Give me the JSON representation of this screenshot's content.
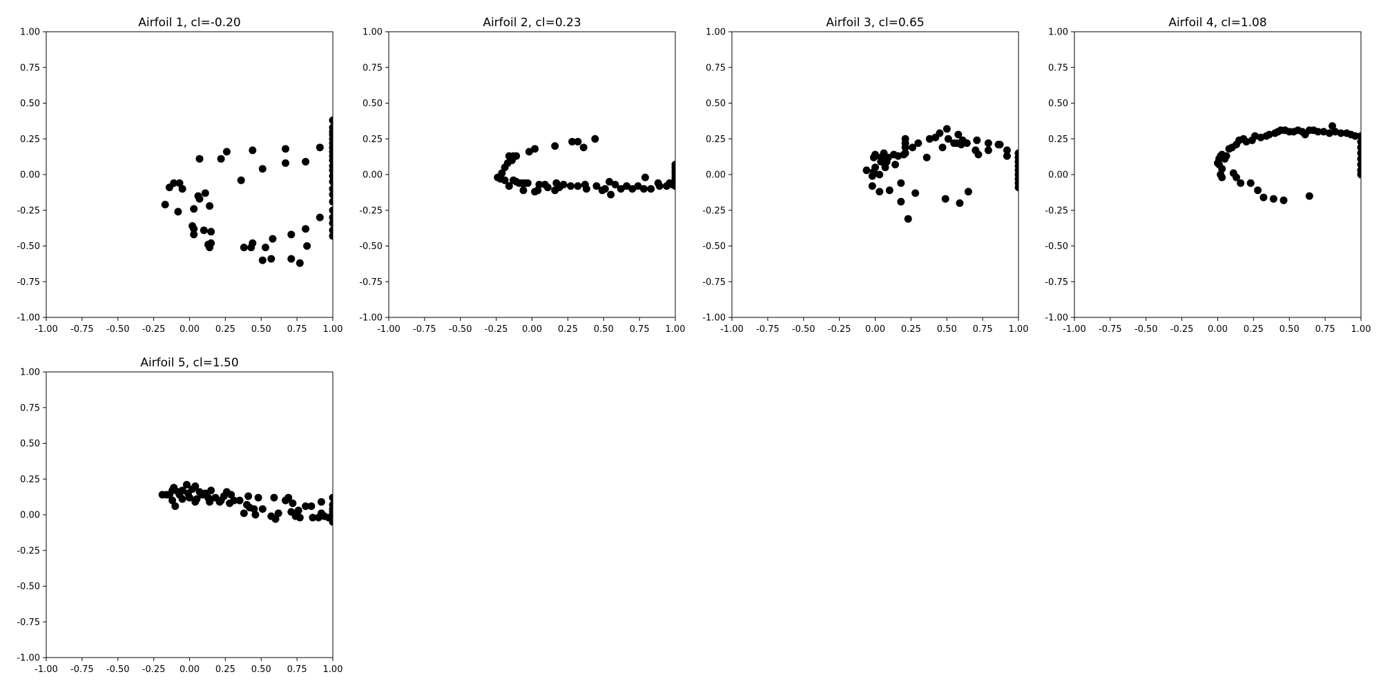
{
  "figure": {
    "subplot_grid": {
      "rows": 2,
      "cols": 4
    },
    "marker_color": "#000000",
    "background": "#ffffff"
  },
  "chart_data": [
    {
      "type": "scatter",
      "title": "Airfoil 1, cl=-0.20",
      "xlim": [
        -1,
        1
      ],
      "ylim": [
        -1,
        1
      ],
      "xticks": [
        "-1.00",
        "-0.75",
        "-0.50",
        "-0.25",
        "0.00",
        "0.25",
        "0.50",
        "0.75",
        "1.00"
      ],
      "yticks": [
        "-1.00",
        "-0.75",
        "-0.50",
        "-0.25",
        "0.00",
        "0.25",
        "0.50",
        "0.75",
        "1.00"
      ],
      "grid": false,
      "points": [
        [
          1.0,
          0.38
        ],
        [
          1.0,
          0.33
        ],
        [
          1.0,
          0.3
        ],
        [
          1.0,
          0.28
        ],
        [
          1.0,
          0.25
        ],
        [
          1.0,
          0.22
        ],
        [
          1.0,
          0.19
        ],
        [
          1.0,
          0.16
        ],
        [
          1.0,
          0.13
        ],
        [
          1.0,
          0.1
        ],
        [
          1.0,
          0.06
        ],
        [
          1.0,
          0.03
        ],
        [
          1.0,
          -0.01
        ],
        [
          1.0,
          -0.05
        ],
        [
          1.0,
          -0.1
        ],
        [
          1.0,
          -0.14
        ],
        [
          1.0,
          -0.19
        ],
        [
          1.0,
          -0.25
        ],
        [
          1.0,
          -0.3
        ],
        [
          1.0,
          -0.34
        ],
        [
          1.0,
          -0.39
        ],
        [
          1.0,
          -0.43
        ],
        [
          0.91,
          0.19
        ],
        [
          0.81,
          0.09
        ],
        [
          0.67,
          0.18
        ],
        [
          0.67,
          0.08
        ],
        [
          0.51,
          0.04
        ],
        [
          0.44,
          0.17
        ],
        [
          0.26,
          0.16
        ],
        [
          0.22,
          0.11
        ],
        [
          0.07,
          0.11
        ],
        [
          0.36,
          -0.04
        ],
        [
          -0.11,
          -0.06
        ],
        [
          -0.14,
          -0.09
        ],
        [
          -0.17,
          -0.21
        ],
        [
          -0.07,
          -0.06
        ],
        [
          -0.05,
          -0.1
        ],
        [
          -0.08,
          -0.26
        ],
        [
          0.03,
          -0.24
        ],
        [
          0.06,
          -0.15
        ],
        [
          0.07,
          -0.17
        ],
        [
          0.11,
          -0.13
        ],
        [
          0.14,
          -0.22
        ],
        [
          0.02,
          -0.36
        ],
        [
          0.03,
          -0.38
        ],
        [
          0.03,
          -0.42
        ],
        [
          0.1,
          -0.39
        ],
        [
          0.15,
          -0.4
        ],
        [
          0.15,
          -0.48
        ],
        [
          0.13,
          -0.49
        ],
        [
          0.14,
          -0.51
        ],
        [
          0.38,
          -0.51
        ],
        [
          0.43,
          -0.51
        ],
        [
          0.44,
          -0.48
        ],
        [
          0.51,
          -0.6
        ],
        [
          0.53,
          -0.51
        ],
        [
          0.57,
          -0.59
        ],
        [
          0.58,
          -0.45
        ],
        [
          0.71,
          -0.42
        ],
        [
          0.71,
          -0.59
        ],
        [
          0.77,
          -0.62
        ],
        [
          0.81,
          -0.38
        ],
        [
          0.82,
          -0.5
        ],
        [
          0.91,
          -0.3
        ]
      ]
    },
    {
      "type": "scatter",
      "title": "Airfoil 2, cl=0.23",
      "xlim": [
        -1,
        1
      ],
      "ylim": [
        -1,
        1
      ],
      "xticks": [
        "-1.00",
        "-0.75",
        "-0.50",
        "-0.25",
        "0.00",
        "0.25",
        "0.50",
        "0.75",
        "1.00"
      ],
      "yticks": [
        "-1.00",
        "-0.75",
        "-0.50",
        "-0.25",
        "0.00",
        "0.25",
        "0.50",
        "0.75",
        "1.00"
      ],
      "grid": false,
      "points": [
        [
          -0.24,
          -0.02
        ],
        [
          -0.22,
          -0.03
        ],
        [
          -0.21,
          0.01
        ],
        [
          -0.19,
          0.05
        ],
        [
          -0.19,
          -0.04
        ],
        [
          -0.17,
          0.08
        ],
        [
          -0.16,
          -0.08
        ],
        [
          -0.16,
          0.13
        ],
        [
          -0.14,
          0.1
        ],
        [
          -0.13,
          0.13
        ],
        [
          -0.13,
          -0.04
        ],
        [
          -0.11,
          -0.05
        ],
        [
          -0.11,
          0.13
        ],
        [
          -0.09,
          -0.06
        ],
        [
          -0.07,
          -0.06
        ],
        [
          -0.06,
          -0.11
        ],
        [
          -0.05,
          -0.06
        ],
        [
          -0.03,
          -0.06
        ],
        [
          -0.02,
          0.16
        ],
        [
          0.02,
          0.18
        ],
        [
          0.02,
          -0.12
        ],
        [
          0.04,
          -0.11
        ],
        [
          0.05,
          -0.07
        ],
        [
          0.09,
          -0.07
        ],
        [
          0.11,
          -0.09
        ],
        [
          0.16,
          0.2
        ],
        [
          0.16,
          -0.11
        ],
        [
          0.17,
          -0.06
        ],
        [
          0.19,
          -0.09
        ],
        [
          0.22,
          -0.07
        ],
        [
          0.27,
          -0.08
        ],
        [
          0.28,
          0.23
        ],
        [
          0.32,
          0.23
        ],
        [
          0.32,
          -0.08
        ],
        [
          0.36,
          0.19
        ],
        [
          0.37,
          -0.07
        ],
        [
          0.38,
          -0.1
        ],
        [
          0.44,
          0.25
        ],
        [
          0.45,
          -0.08
        ],
        [
          0.49,
          -0.11
        ],
        [
          0.51,
          -0.1
        ],
        [
          0.54,
          -0.05
        ],
        [
          0.55,
          -0.14
        ],
        [
          0.58,
          -0.07
        ],
        [
          0.62,
          -0.1
        ],
        [
          0.66,
          -0.08
        ],
        [
          0.7,
          -0.1
        ],
        [
          0.74,
          -0.08
        ],
        [
          0.78,
          -0.1
        ],
        [
          0.79,
          -0.02
        ],
        [
          0.83,
          -0.1
        ],
        [
          0.88,
          -0.06
        ],
        [
          0.89,
          -0.08
        ],
        [
          0.94,
          -0.08
        ],
        [
          0.96,
          -0.06
        ],
        [
          0.98,
          -0.07
        ],
        [
          1.0,
          0.07
        ],
        [
          1.0,
          0.05
        ],
        [
          1.0,
          0.03
        ],
        [
          1.0,
          0.01
        ],
        [
          1.0,
          -0.01
        ],
        [
          1.0,
          -0.03
        ],
        [
          1.0,
          -0.05
        ],
        [
          1.0,
          -0.08
        ]
      ]
    },
    {
      "type": "scatter",
      "title": "Airfoil 3, cl=0.65",
      "xlim": [
        -1,
        1
      ],
      "ylim": [
        -1,
        1
      ],
      "xticks": [
        "-1.00",
        "-0.75",
        "-0.50",
        "-0.25",
        "0.00",
        "0.25",
        "0.50",
        "0.75",
        "1.00"
      ],
      "yticks": [
        "-1.00",
        "-0.75",
        "-0.50",
        "-0.25",
        "0.00",
        "0.25",
        "0.50",
        "0.75",
        "1.00"
      ],
      "grid": false,
      "points": [
        [
          -0.06,
          0.03
        ],
        [
          -0.02,
          -0.08
        ],
        [
          -0.01,
          0.12
        ],
        [
          0.0,
          0.14
        ],
        [
          0.0,
          0.05
        ],
        [
          -0.01,
          0.02
        ],
        [
          -0.02,
          -0.01
        ],
        [
          0.03,
          -0.12
        ],
        [
          0.03,
          0.0
        ],
        [
          0.04,
          0.09
        ],
        [
          0.04,
          0.12
        ],
        [
          0.06,
          0.15
        ],
        [
          0.06,
          0.11
        ],
        [
          0.07,
          0.05
        ],
        [
          0.08,
          0.09
        ],
        [
          0.09,
          0.12
        ],
        [
          0.1,
          -0.11
        ],
        [
          0.13,
          0.14
        ],
        [
          0.14,
          0.07
        ],
        [
          0.16,
          0.13
        ],
        [
          0.18,
          -0.06
        ],
        [
          0.18,
          -0.19
        ],
        [
          0.2,
          0.14
        ],
        [
          0.21,
          0.25
        ],
        [
          0.21,
          0.22
        ],
        [
          0.21,
          0.19
        ],
        [
          0.21,
          0.15
        ],
        [
          0.23,
          -0.31
        ],
        [
          0.26,
          0.19
        ],
        [
          0.28,
          -0.13
        ],
        [
          0.3,
          0.22
        ],
        [
          0.36,
          0.12
        ],
        [
          0.38,
          0.25
        ],
        [
          0.42,
          0.26
        ],
        [
          0.45,
          0.29
        ],
        [
          0.47,
          0.19
        ],
        [
          0.49,
          -0.17
        ],
        [
          0.5,
          0.32
        ],
        [
          0.51,
          0.25
        ],
        [
          0.55,
          0.22
        ],
        [
          0.57,
          0.22
        ],
        [
          0.58,
          0.28
        ],
        [
          0.59,
          -0.2
        ],
        [
          0.6,
          0.21
        ],
        [
          0.61,
          0.24
        ],
        [
          0.64,
          0.22
        ],
        [
          0.65,
          -0.12
        ],
        [
          0.7,
          0.17
        ],
        [
          0.71,
          0.24
        ],
        [
          0.72,
          0.14
        ],
        [
          0.79,
          0.22
        ],
        [
          0.79,
          0.17
        ],
        [
          0.86,
          0.21
        ],
        [
          0.87,
          0.21
        ],
        [
          0.92,
          0.17
        ],
        [
          0.92,
          0.13
        ],
        [
          1.0,
          0.15
        ],
        [
          1.0,
          0.12
        ],
        [
          1.0,
          0.09
        ],
        [
          1.0,
          0.06
        ],
        [
          1.0,
          0.03
        ],
        [
          1.0,
          0.0
        ],
        [
          1.0,
          -0.03
        ],
        [
          1.0,
          -0.06
        ],
        [
          1.0,
          -0.09
        ]
      ]
    },
    {
      "type": "scatter",
      "title": "Airfoil 4, cl=1.08",
      "xlim": [
        -1,
        1
      ],
      "ylim": [
        -1,
        1
      ],
      "xticks": [
        "-1.00",
        "-0.75",
        "-0.50",
        "-0.25",
        "0.00",
        "0.25",
        "0.50",
        "0.75",
        "1.00"
      ],
      "yticks": [
        "-1.00",
        "-0.75",
        "-0.50",
        "-0.25",
        "0.00",
        "0.25",
        "0.50",
        "0.75",
        "1.00"
      ],
      "grid": false,
      "points": [
        [
          0.0,
          0.08
        ],
        [
          0.01,
          0.07
        ],
        [
          0.01,
          0.11
        ],
        [
          0.02,
          0.13
        ],
        [
          0.03,
          0.14
        ],
        [
          0.02,
          0.0
        ],
        [
          0.03,
          0.04
        ],
        [
          0.03,
          -0.02
        ],
        [
          0.05,
          0.11
        ],
        [
          0.06,
          0.13
        ],
        [
          0.08,
          0.18
        ],
        [
          0.1,
          0.19
        ],
        [
          0.11,
          0.01
        ],
        [
          0.13,
          0.21
        ],
        [
          0.13,
          -0.02
        ],
        [
          0.15,
          0.24
        ],
        [
          0.16,
          -0.06
        ],
        [
          0.18,
          0.25
        ],
        [
          0.2,
          0.23
        ],
        [
          0.24,
          0.24
        ],
        [
          0.23,
          -0.06
        ],
        [
          0.26,
          0.27
        ],
        [
          0.28,
          -0.11
        ],
        [
          0.3,
          0.26
        ],
        [
          0.32,
          -0.16
        ],
        [
          0.34,
          0.27
        ],
        [
          0.36,
          0.28
        ],
        [
          0.39,
          -0.17
        ],
        [
          0.4,
          0.29
        ],
        [
          0.42,
          0.3
        ],
        [
          0.44,
          0.31
        ],
        [
          0.46,
          -0.18
        ],
        [
          0.47,
          0.31
        ],
        [
          0.5,
          0.3
        ],
        [
          0.53,
          0.3
        ],
        [
          0.56,
          0.31
        ],
        [
          0.59,
          0.3
        ],
        [
          0.61,
          0.28
        ],
        [
          0.64,
          0.31
        ],
        [
          0.64,
          -0.15
        ],
        [
          0.67,
          0.31
        ],
        [
          0.7,
          0.3
        ],
        [
          0.74,
          0.3
        ],
        [
          0.78,
          0.29
        ],
        [
          0.8,
          0.34
        ],
        [
          0.82,
          0.3
        ],
        [
          0.86,
          0.29
        ],
        [
          0.9,
          0.29
        ],
        [
          0.93,
          0.28
        ],
        [
          0.96,
          0.27
        ],
        [
          1.0,
          0.27
        ],
        [
          1.0,
          0.23
        ],
        [
          1.0,
          0.19
        ],
        [
          1.0,
          0.15
        ],
        [
          1.0,
          0.11
        ],
        [
          1.0,
          0.07
        ],
        [
          1.0,
          0.03
        ],
        [
          1.0,
          0.0
        ]
      ]
    },
    {
      "type": "scatter",
      "title": "Airfoil 5, cl=1.50",
      "xlim": [
        -1,
        1
      ],
      "ylim": [
        -1,
        1
      ],
      "xticks": [
        "-1.00",
        "-0.75",
        "-0.50",
        "-0.25",
        "0.00",
        "0.25",
        "0.50",
        "0.75",
        "1.00"
      ],
      "yticks": [
        "-1.00",
        "-0.75",
        "-0.50",
        "-0.25",
        "0.00",
        "0.25",
        "0.50",
        "0.75",
        "1.00"
      ],
      "grid": false,
      "points": [
        [
          -0.19,
          0.14
        ],
        [
          -0.16,
          0.14
        ],
        [
          -0.14,
          0.14
        ],
        [
          -0.12,
          0.17
        ],
        [
          -0.11,
          0.19
        ],
        [
          -0.12,
          0.1
        ],
        [
          -0.1,
          0.06
        ],
        [
          -0.08,
          0.16
        ],
        [
          -0.07,
          0.14
        ],
        [
          -0.05,
          0.17
        ],
        [
          -0.05,
          0.11
        ],
        [
          -0.02,
          0.21
        ],
        [
          -0.01,
          0.15
        ],
        [
          0.0,
          0.12
        ],
        [
          0.02,
          0.18
        ],
        [
          0.04,
          0.09
        ],
        [
          0.04,
          0.2
        ],
        [
          0.05,
          0.11
        ],
        [
          0.07,
          0.16
        ],
        [
          0.09,
          0.14
        ],
        [
          0.11,
          0.15
        ],
        [
          0.13,
          0.12
        ],
        [
          0.14,
          0.09
        ],
        [
          0.15,
          0.17
        ],
        [
          0.18,
          0.12
        ],
        [
          0.21,
          0.09
        ],
        [
          0.22,
          0.1
        ],
        [
          0.24,
          0.13
        ],
        [
          0.26,
          0.16
        ],
        [
          0.28,
          0.08
        ],
        [
          0.29,
          0.14
        ],
        [
          0.31,
          0.1
        ],
        [
          0.35,
          0.1
        ],
        [
          0.38,
          0.01
        ],
        [
          0.4,
          0.07
        ],
        [
          0.41,
          0.13
        ],
        [
          0.42,
          0.05
        ],
        [
          0.45,
          0.04
        ],
        [
          0.46,
          0.0
        ],
        [
          0.48,
          0.12
        ],
        [
          0.51,
          0.04
        ],
        [
          0.57,
          -0.01
        ],
        [
          0.59,
          0.12
        ],
        [
          0.6,
          -0.03
        ],
        [
          0.62,
          0.01
        ],
        [
          0.67,
          0.1
        ],
        [
          0.69,
          0.12
        ],
        [
          0.71,
          0.02
        ],
        [
          0.72,
          0.08
        ],
        [
          0.74,
          -0.01
        ],
        [
          0.76,
          0.03
        ],
        [
          0.77,
          -0.02
        ],
        [
          0.81,
          0.06
        ],
        [
          0.85,
          0.06
        ],
        [
          0.86,
          -0.02
        ],
        [
          0.9,
          -0.02
        ],
        [
          0.92,
          0.09
        ],
        [
          0.92,
          0.01
        ],
        [
          0.94,
          -0.01
        ],
        [
          0.97,
          -0.02
        ],
        [
          1.0,
          0.12
        ],
        [
          1.0,
          0.07
        ],
        [
          1.0,
          0.04
        ],
        [
          1.0,
          0.02
        ],
        [
          1.0,
          0.0
        ],
        [
          1.0,
          -0.02
        ],
        [
          1.0,
          -0.05
        ]
      ]
    }
  ]
}
